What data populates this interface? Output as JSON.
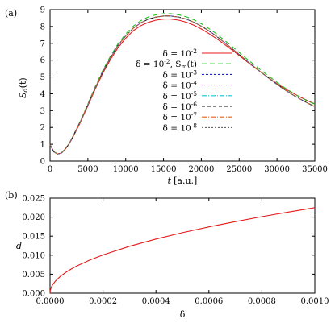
{
  "chart_data": [
    {
      "panel_label": "(a)",
      "type": "line",
      "ylabel_main": "S",
      "ylabel_sub": "d",
      "ylabel_tail": "(t)",
      "xlabel_main": "t",
      "xlabel_tail": "[a.u.]",
      "xlim": [
        0,
        35000
      ],
      "ylim": [
        0,
        9
      ],
      "xticks": [
        0,
        5000,
        10000,
        15000,
        20000,
        25000,
        30000,
        35000
      ],
      "yticks": [
        0,
        1,
        2,
        3,
        4,
        5,
        6,
        7,
        8,
        9
      ],
      "x": [
        0,
        500,
        1000,
        1500,
        2000,
        2500,
        3000,
        4000,
        5000,
        6000,
        7000,
        8000,
        9000,
        10000,
        11000,
        12000,
        13000,
        14000,
        15000,
        15500,
        16000,
        17000,
        18000,
        19000,
        20000,
        21000,
        22000,
        23000,
        24000,
        25000,
        26000,
        27000,
        28000,
        29000,
        30000,
        31000,
        32000,
        33000,
        34000,
        35000
      ],
      "series": [
        {
          "legend_main": "δ = 10",
          "legend_exp": "-2",
          "legend_tail": "",
          "color": "#e41a1c",
          "dash": "",
          "values": [
            0.98,
            0.55,
            0.42,
            0.48,
            0.7,
            1.0,
            1.4,
            2.3,
            3.3,
            4.3,
            5.25,
            6.05,
            6.75,
            7.3,
            7.75,
            8.05,
            8.25,
            8.38,
            8.44,
            8.45,
            8.44,
            8.38,
            8.26,
            8.08,
            7.85,
            7.58,
            7.28,
            6.96,
            6.62,
            6.28,
            5.92,
            5.58,
            5.24,
            4.92,
            4.6,
            4.32,
            4.06,
            3.82,
            3.6,
            3.4
          ]
        },
        {
          "legend_main": "δ = 10",
          "legend_exp": "-2",
          "legend_tail": ", S",
          "legend_sub": "m",
          "legend_tail2": "(t)",
          "color": "#1ec21e",
          "dash": "6,4",
          "values": [
            0.98,
            0.55,
            0.42,
            0.48,
            0.72,
            1.03,
            1.45,
            2.38,
            3.4,
            4.45,
            5.42,
            6.25,
            6.98,
            7.55,
            8.02,
            8.35,
            8.57,
            8.7,
            8.76,
            8.77,
            8.76,
            8.7,
            8.58,
            8.4,
            8.16,
            7.88,
            7.56,
            7.2,
            6.84,
            6.46,
            6.08,
            5.72,
            5.36,
            5.02,
            4.68,
            4.36,
            4.08,
            3.82,
            3.58,
            3.38
          ]
        },
        {
          "legend_main": "δ = 10",
          "legend_exp": "-3",
          "legend_tail": "",
          "color": "#1f1fc8",
          "dash": "3,2",
          "values": [
            0.98,
            0.55,
            0.42,
            0.48,
            0.71,
            1.02,
            1.43,
            2.34,
            3.36,
            4.38,
            5.34,
            6.16,
            6.88,
            7.44,
            7.9,
            8.22,
            8.44,
            8.56,
            8.62,
            8.63,
            8.62,
            8.56,
            8.44,
            8.26,
            8.02,
            7.74,
            7.42,
            7.07,
            6.71,
            6.34,
            5.96,
            5.6,
            5.24,
            4.9,
            4.56,
            4.25,
            3.96,
            3.7,
            3.46,
            3.24
          ]
        },
        {
          "legend_main": "δ = 10",
          "legend_exp": "-4",
          "legend_tail": "",
          "color": "#e020e0",
          "dash": "1,2",
          "values": [
            0.98,
            0.55,
            0.42,
            0.48,
            0.71,
            1.02,
            1.43,
            2.34,
            3.36,
            4.38,
            5.34,
            6.16,
            6.88,
            7.44,
            7.9,
            8.22,
            8.44,
            8.56,
            8.62,
            8.63,
            8.62,
            8.56,
            8.44,
            8.26,
            8.02,
            7.74,
            7.42,
            7.07,
            6.71,
            6.34,
            5.96,
            5.6,
            5.24,
            4.9,
            4.56,
            4.25,
            3.96,
            3.7,
            3.46,
            3.24
          ]
        },
        {
          "legend_main": "δ = 10",
          "legend_exp": "-5",
          "legend_tail": "",
          "color": "#10c8d8",
          "dash": "6,2,1,2",
          "values": [
            0.98,
            0.55,
            0.42,
            0.48,
            0.71,
            1.02,
            1.43,
            2.34,
            3.36,
            4.38,
            5.34,
            6.16,
            6.88,
            7.44,
            7.9,
            8.22,
            8.44,
            8.56,
            8.62,
            8.63,
            8.62,
            8.56,
            8.44,
            8.26,
            8.02,
            7.74,
            7.42,
            7.07,
            6.71,
            6.34,
            5.96,
            5.6,
            5.24,
            4.9,
            4.56,
            4.25,
            3.96,
            3.7,
            3.46,
            3.24
          ]
        },
        {
          "legend_main": "δ = 10",
          "legend_exp": "-6",
          "legend_tail": "",
          "color": "#111111",
          "dash": "4,3",
          "values": [
            0.98,
            0.55,
            0.42,
            0.48,
            0.71,
            1.02,
            1.43,
            2.34,
            3.36,
            4.38,
            5.34,
            6.16,
            6.88,
            7.44,
            7.9,
            8.22,
            8.44,
            8.56,
            8.62,
            8.63,
            8.62,
            8.56,
            8.44,
            8.26,
            8.02,
            7.74,
            7.42,
            7.07,
            6.71,
            6.34,
            5.96,
            5.6,
            5.24,
            4.9,
            4.56,
            4.25,
            3.96,
            3.7,
            3.46,
            3.24
          ]
        },
        {
          "legend_main": "δ = 10",
          "legend_exp": "-7",
          "legend_tail": "",
          "color": "#e8601a",
          "dash": "6,2,1,2",
          "values": [
            0.98,
            0.55,
            0.42,
            0.48,
            0.71,
            1.02,
            1.43,
            2.34,
            3.36,
            4.38,
            5.34,
            6.16,
            6.88,
            7.44,
            7.9,
            8.22,
            8.44,
            8.56,
            8.62,
            8.63,
            8.62,
            8.56,
            8.44,
            8.26,
            8.02,
            7.74,
            7.42,
            7.07,
            6.71,
            6.34,
            5.96,
            5.6,
            5.24,
            4.9,
            4.56,
            4.25,
            3.96,
            3.7,
            3.46,
            3.24
          ]
        },
        {
          "legend_main": "δ = 10",
          "legend_exp": "-8",
          "legend_tail": "",
          "color": "#666666",
          "dash": "2,2",
          "values": [
            0.98,
            0.55,
            0.42,
            0.48,
            0.71,
            1.02,
            1.43,
            2.34,
            3.36,
            4.38,
            5.34,
            6.16,
            6.88,
            7.44,
            7.9,
            8.22,
            8.44,
            8.56,
            8.62,
            8.63,
            8.62,
            8.56,
            8.44,
            8.26,
            8.02,
            7.74,
            7.42,
            7.07,
            6.71,
            6.34,
            5.96,
            5.6,
            5.24,
            4.9,
            4.56,
            4.25,
            3.96,
            3.7,
            3.46,
            3.24
          ]
        }
      ],
      "legend_position": "center-right"
    },
    {
      "panel_label": "(b)",
      "type": "line",
      "ylabel_main": "d",
      "xlabel_main": "δ",
      "xlim": [
        0,
        0.001
      ],
      "ylim": [
        0,
        0.025
      ],
      "xtick_values": [
        0,
        0.0002,
        0.0004,
        0.0006,
        0.0008,
        0.001
      ],
      "xtick_labels": [
        "0.0000",
        "0.0002",
        "0.0004",
        "0.0006",
        "0.0008",
        "0.0010"
      ],
      "ytick_values": [
        0,
        0.005,
        0.01,
        0.015,
        0.02,
        0.025
      ],
      "ytick_labels": [
        "0.000",
        "0.005",
        "0.010",
        "0.015",
        "0.020",
        "0.025"
      ],
      "x": [
        0,
        1e-06,
        5e-06,
        1e-05,
        2e-05,
        4e-05,
        6e-05,
        8e-05,
        0.0001,
        0.00015,
        0.0002,
        0.0003,
        0.0004,
        0.0005,
        0.0006,
        0.0007,
        0.0008,
        0.0009,
        0.001
      ],
      "series": [
        {
          "color": "#e41a1c",
          "values": [
            0,
            0.00071,
            0.00159,
            0.00225,
            0.00318,
            0.0045,
            0.00551,
            0.00636,
            0.00711,
            0.00871,
            0.01006,
            0.01232,
            0.01423,
            0.01591,
            0.01743,
            0.01882,
            0.02012,
            0.02134,
            0.0225
          ]
        }
      ]
    }
  ]
}
